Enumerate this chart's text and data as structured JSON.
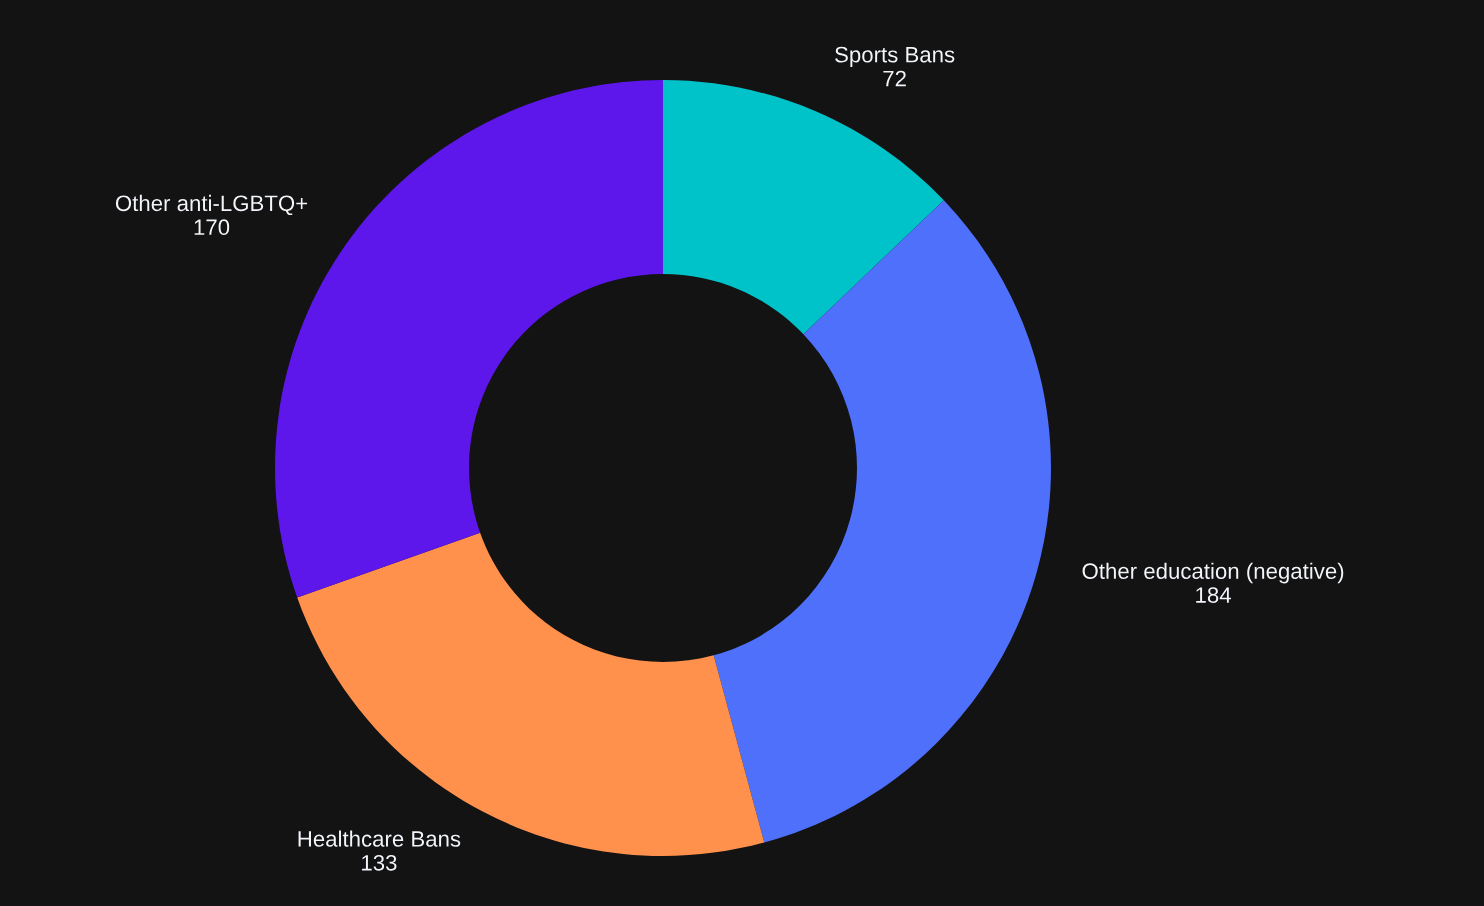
{
  "chart_data": {
    "type": "donut",
    "categories": [
      "Sports Bans",
      "Other education (negative)",
      "Healthcare Bans",
      "Other anti-LGBTQ+"
    ],
    "values": [
      72,
      184,
      133,
      170
    ],
    "colors": [
      "#00c2c9",
      "#4f70fb",
      "#ff914d",
      "#5e17eb"
    ],
    "data_labels": true
  }
}
